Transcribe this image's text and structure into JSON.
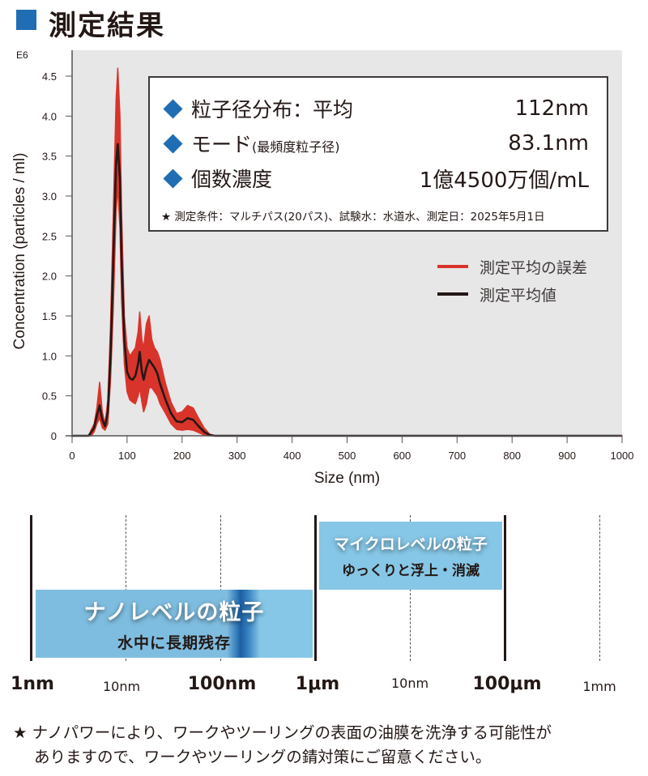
{
  "header": {
    "title": "測定結果",
    "accent_color": "#1f6eb3"
  },
  "info_box": {
    "rows": [
      {
        "label": "粒子径分布：平均",
        "label_sub": "",
        "value": "112nm"
      },
      {
        "label": "モード",
        "label_sub": "(最頻度粒子径)",
        "value": "83.1nm"
      },
      {
        "label": "個数濃度",
        "label_sub": "",
        "value": "1億4500万個/mL"
      }
    ],
    "note": "★ 測定条件：マルチパス(20パス)、試験水：水道水、測定日：2025年5月1日",
    "bullet_icon": "diamond-icon"
  },
  "legend": {
    "items": [
      {
        "label": "測定平均の誤差",
        "color": "#d9342b"
      },
      {
        "label": "測定平均値",
        "color": "#231815"
      }
    ]
  },
  "chart_data": {
    "type": "area",
    "title": "",
    "xlabel": "Size (nm)",
    "ylabel": "Concentration (particles / ml)",
    "y_multiplier_label": "E6",
    "xlim": [
      0,
      1000
    ],
    "ylim": [
      0,
      4.8
    ],
    "x_ticks": [
      0,
      100,
      200,
      300,
      400,
      500,
      600,
      700,
      800,
      900,
      1000
    ],
    "y_ticks": [
      "0",
      "0.5",
      "1.0",
      "1.5",
      "2.0",
      "2.5",
      "3.0",
      "3.5",
      "4.0",
      "4.5"
    ],
    "y_tick_values": [
      0,
      0.5,
      1.0,
      1.5,
      2.0,
      2.5,
      3.0,
      3.5,
      4.0,
      4.5
    ],
    "grid": false,
    "background": "#e8e7e8",
    "legend_position": "right-middle",
    "x": [
      0,
      30,
      35,
      40,
      45,
      50,
      55,
      60,
      65,
      70,
      75,
      80,
      83,
      87,
      90,
      95,
      100,
      105,
      110,
      115,
      120,
      123,
      127,
      130,
      135,
      140,
      145,
      150,
      155,
      160,
      170,
      180,
      190,
      200,
      210,
      220,
      230,
      240,
      250,
      260,
      1000
    ],
    "series": [
      {
        "name": "測定平均値",
        "color": "#231815",
        "values": [
          0,
          0,
          0.05,
          0.1,
          0.25,
          0.38,
          0.2,
          0.12,
          0.3,
          1.0,
          2.2,
          3.4,
          3.65,
          3.2,
          2.2,
          1.2,
          0.8,
          0.72,
          0.7,
          0.75,
          0.9,
          1.05,
          0.8,
          0.7,
          0.85,
          0.95,
          0.9,
          0.85,
          0.78,
          0.65,
          0.45,
          0.28,
          0.18,
          0.17,
          0.22,
          0.2,
          0.12,
          0.05,
          0.01,
          0,
          0
        ]
      },
      {
        "name": "測定平均の誤差 (upper)",
        "color": "#d9342b",
        "values": [
          0,
          0,
          0.08,
          0.15,
          0.35,
          0.67,
          0.3,
          0.15,
          0.45,
          1.4,
          2.8,
          4.2,
          4.6,
          4.0,
          2.8,
          1.5,
          1.1,
          1.0,
          1.05,
          1.1,
          1.3,
          1.55,
          1.2,
          1.1,
          1.4,
          1.5,
          1.2,
          1.1,
          1.05,
          0.95,
          0.65,
          0.42,
          0.28,
          0.3,
          0.38,
          0.35,
          0.22,
          0.1,
          0.02,
          0,
          0
        ]
      },
      {
        "name": "測定平均の誤差 (lower)",
        "color": "#d9342b",
        "values": [
          0,
          0,
          0.0,
          0.05,
          0.15,
          0.22,
          0.1,
          0.07,
          0.15,
          0.7,
          1.6,
          2.8,
          3.1,
          2.6,
          1.7,
          0.9,
          0.55,
          0.45,
          0.42,
          0.4,
          0.5,
          0.6,
          0.42,
          0.3,
          0.4,
          0.6,
          0.6,
          0.55,
          0.5,
          0.4,
          0.28,
          0.15,
          0.08,
          0.07,
          0.08,
          0.07,
          0.04,
          0.01,
          0,
          0,
          0
        ]
      }
    ]
  },
  "size_scale": {
    "ticks": [
      {
        "label": "1nm",
        "style": "major",
        "line": "solid"
      },
      {
        "label": "10nm",
        "style": "minor",
        "line": "dashed"
      },
      {
        "label": "100nm",
        "style": "major",
        "line": "dashed"
      },
      {
        "label": "1μm",
        "style": "major",
        "line": "solid"
      },
      {
        "label": "10nm",
        "style": "minor",
        "line": "dashed"
      },
      {
        "label": "100μm",
        "style": "major",
        "line": "solid"
      },
      {
        "label": "1mm",
        "style": "minor",
        "line": "dashed"
      }
    ],
    "nano_band": {
      "title": "ナノレベルの粒子",
      "subtitle": "水中に長期残存",
      "color": "#7fbde0"
    },
    "micro_band": {
      "title": "マイクロレベルの粒子",
      "subtitle": "ゆっくりと浮上・消滅",
      "color": "#86c6e6"
    }
  },
  "footnote": {
    "line1": "★ ナノパワーにより、ワークやツーリングの表面の油膜を洗浄する可能性が",
    "line2": "ありますので、ワークやツーリングの錆対策にご留意ください。"
  }
}
